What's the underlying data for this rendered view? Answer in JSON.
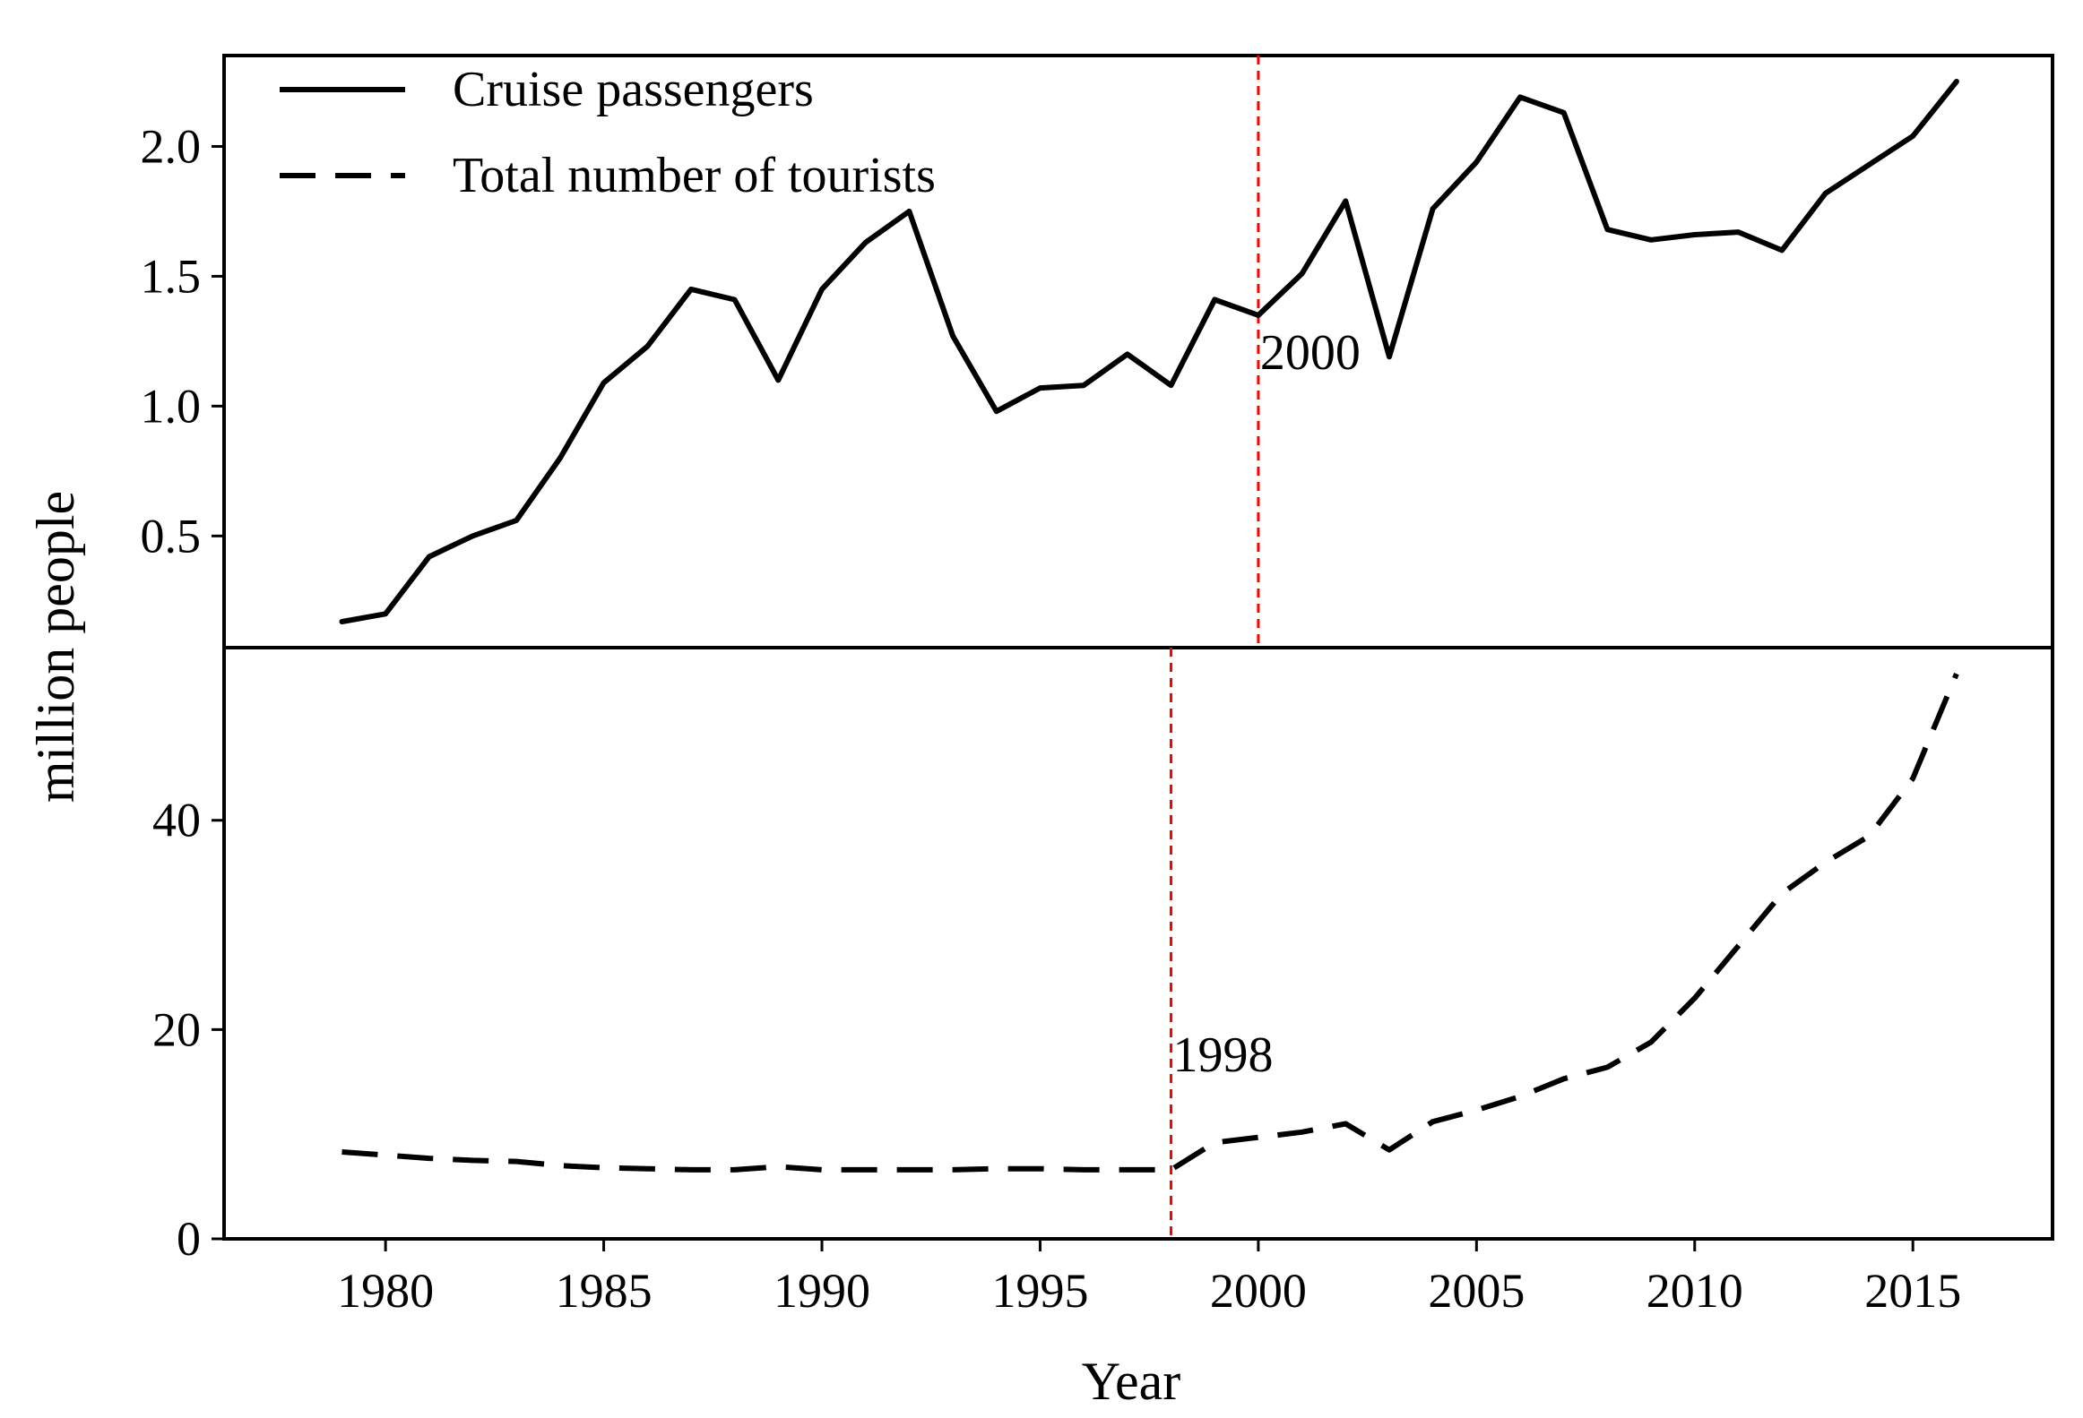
{
  "chart_data": {
    "type": "line",
    "xlabel": "Year",
    "ylabel": "million people",
    "xlim": [
      1976.3,
      2018.2
    ],
    "x_ticks": [
      1980,
      1985,
      1990,
      1995,
      2000,
      2005,
      2010,
      2015
    ],
    "colors": {
      "series": "#000000",
      "marker": "#ff0000",
      "axis": "#000000"
    },
    "legend": {
      "position": "top-left",
      "entries": [
        {
          "label": "Cruise passengers",
          "style": "solid"
        },
        {
          "label": "Total number of tourists",
          "style": "dashed"
        }
      ]
    },
    "panels": [
      {
        "name": "top",
        "ylim": [
          0.07,
          2.35
        ],
        "y_ticks": [
          0.5,
          1.0,
          1.5,
          2.0
        ],
        "y_tick_labels": [
          "0.5",
          "1.0",
          "1.5",
          "2.0"
        ],
        "series": {
          "name": "Cruise passengers",
          "style": "solid",
          "x": [
            1979,
            1980,
            1981,
            1982,
            1983,
            1984,
            1985,
            1986,
            1987,
            1988,
            1989,
            1990,
            1991,
            1992,
            1993,
            1994,
            1995,
            1996,
            1997,
            1998,
            1999,
            2000,
            2001,
            2002,
            2003,
            2004,
            2005,
            2006,
            2007,
            2008,
            2009,
            2010,
            2011,
            2012,
            2013,
            2014,
            2015,
            2016
          ],
          "values": [
            0.17,
            0.2,
            0.42,
            0.5,
            0.56,
            0.8,
            1.09,
            1.23,
            1.45,
            1.41,
            1.1,
            1.45,
            1.63,
            1.75,
            1.27,
            0.98,
            1.07,
            1.08,
            1.2,
            1.08,
            1.41,
            1.35,
            1.51,
            1.79,
            1.19,
            1.76,
            1.94,
            2.19,
            2.13,
            1.68,
            1.64,
            1.66,
            1.67,
            1.6,
            1.82,
            1.93,
            2.04,
            2.25
          ]
        },
        "marker": {
          "x": 2000,
          "label": "2000"
        }
      },
      {
        "name": "bottom",
        "ylim": [
          0,
          56.5
        ],
        "y_ticks": [
          0,
          20,
          40
        ],
        "y_tick_labels": [
          "0",
          "20",
          "40"
        ],
        "series": {
          "name": "Total number of tourists",
          "style": "dashed",
          "x": [
            1979,
            1980,
            1981,
            1982,
            1983,
            1984,
            1985,
            1986,
            1987,
            1988,
            1989,
            1990,
            1991,
            1992,
            1993,
            1994,
            1995,
            1996,
            1997,
            1998,
            1999,
            2000,
            2001,
            2002,
            2003,
            2004,
            2005,
            2006,
            2007,
            2008,
            2009,
            2010,
            2011,
            2012,
            2013,
            2014,
            2015,
            2016
          ],
          "values": [
            8.3,
            8.0,
            7.7,
            7.5,
            7.4,
            7.0,
            6.8,
            6.7,
            6.6,
            6.6,
            6.9,
            6.6,
            6.6,
            6.6,
            6.6,
            6.7,
            6.7,
            6.6,
            6.6,
            6.6,
            9.2,
            9.7,
            10.2,
            11.0,
            8.5,
            11.2,
            12.3,
            13.6,
            15.3,
            16.4,
            18.8,
            23.0,
            28.0,
            33.0,
            36.0,
            38.5,
            44.0,
            54.0
          ]
        },
        "marker": {
          "x": 1998,
          "label": "1998"
        }
      }
    ]
  }
}
